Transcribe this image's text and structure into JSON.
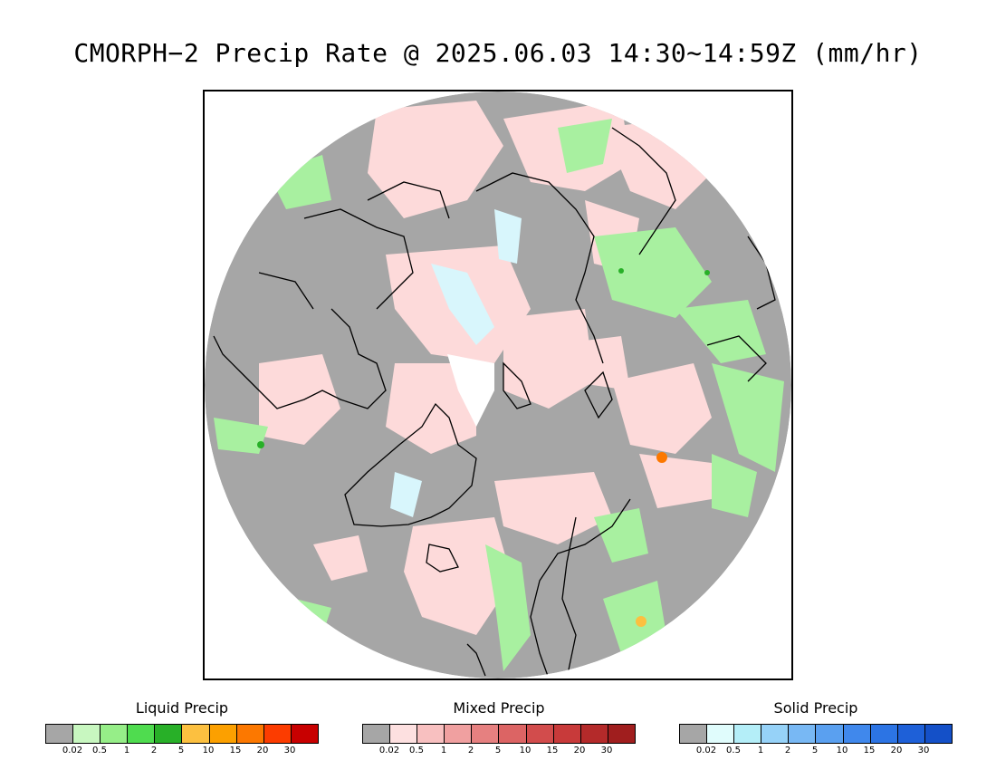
{
  "title": "CMORPH−2 Precip Rate @ 2025.06.03 14:30∼14:59Z (mm/hr)",
  "map": {
    "projection": "polar-stereographic-north",
    "background_color": "#a6a6a6",
    "coastline_color": "#000000"
  },
  "legends": [
    {
      "title": "Liquid Precip",
      "colors": [
        "#a6a6a6",
        "#c8f7c0",
        "#96ee88",
        "#4fdc4f",
        "#28b028",
        "#fcc040",
        "#fca000",
        "#fc7800",
        "#fc3c00",
        "#c80000"
      ],
      "ticks": [
        "0.02",
        "0.5",
        "1",
        "2",
        "5",
        "10",
        "15",
        "20",
        "30"
      ]
    },
    {
      "title": "Mixed Precip",
      "colors": [
        "#a6a6a6",
        "#fde0e0",
        "#f8c0c0",
        "#f0a0a0",
        "#e68080",
        "#dc6464",
        "#d24c4c",
        "#c83a3a",
        "#b42a2a",
        "#a01e1e"
      ],
      "ticks": [
        "0.02",
        "0.5",
        "1",
        "2",
        "5",
        "10",
        "15",
        "20",
        "30"
      ]
    },
    {
      "title": "Solid Precip",
      "colors": [
        "#a6a6a6",
        "#e0fcfc",
        "#b4eef8",
        "#96d2f8",
        "#78b8f4",
        "#5aa0f0",
        "#4088ec",
        "#2c74e4",
        "#1e60d8",
        "#1450c8"
      ],
      "ticks": [
        "0.02",
        "0.5",
        "1",
        "2",
        "5",
        "10",
        "15",
        "20",
        "30"
      ]
    }
  ]
}
